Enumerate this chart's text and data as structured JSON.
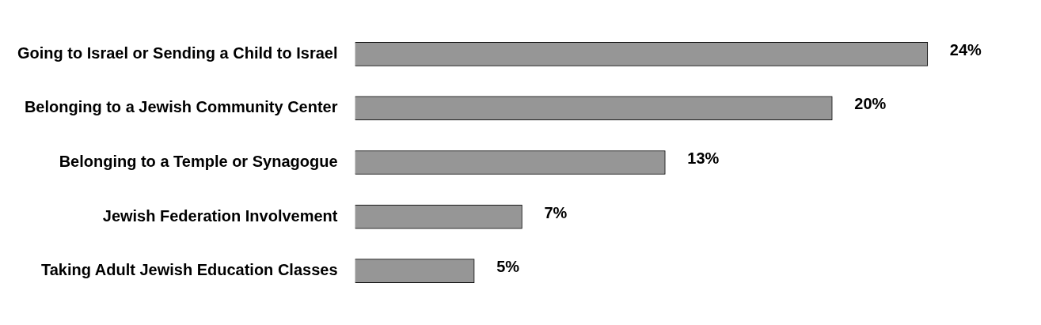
{
  "chart_data": {
    "type": "bar",
    "orientation": "horizontal",
    "categories": [
      "Going to Israel or Sending a Child to Israel",
      "Belonging to a Jewish Community Center",
      "Belonging to a Temple or Synagogue",
      "Jewish Federation Involvement",
      "Taking Adult Jewish Education Classes"
    ],
    "values": [
      24,
      20,
      13,
      7,
      5
    ],
    "value_labels": [
      "24%",
      "20%",
      "13%",
      "7%",
      "5%"
    ],
    "color": "#969696"
  }
}
